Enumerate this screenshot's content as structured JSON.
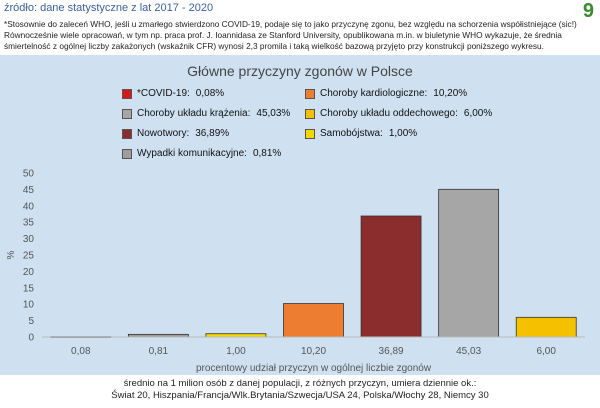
{
  "header": {
    "source": "źródło: dane statystyczne z lat 2017 - 2020",
    "page_number": "9",
    "note_line1": "*Stosownie do zaleceń WHO, jeśli u zmarłego stwierdzono COVID-19, podaje się to jako przyczynę zgonu, bez względu na schorzenia współistniejące (sic!)",
    "note_line2": "Równocześnie wiele opracowań, w tym np. praca prof. J. Ioannidasa ze Stanford University, opublikowana m.in. w biuletynie WHO wykazuje, że średnia",
    "note_line3": "śmiertelność z ogólnej liczby zakażonych (wskaźnik CFR) wynosi 2,3 promila i taką wielkość bazową przyjęto przy konstrukcji poniższego wykresu."
  },
  "chart_data": {
    "type": "bar",
    "title": "Główne przyczyny zgonów w Polsce",
    "ylabel": "%",
    "xlabel": "procentowy udział przyczyn w ogólnej liczbie zgonów",
    "ylim": [
      0,
      50
    ],
    "yticks": [
      "0",
      "5",
      "10",
      "15",
      "20",
      "25",
      "30",
      "35",
      "40",
      "45",
      "50"
    ],
    "grid": false,
    "categories": [
      "0,08",
      "0,81",
      "1,00",
      "10,20",
      "36,89",
      "45,03",
      "6,00"
    ],
    "values": [
      0.08,
      0.81,
      1.0,
      10.2,
      36.89,
      45.03,
      6.0
    ],
    "colors": [
      "#d7191c",
      "#9e9e9e",
      "#f5d800",
      "#ed7d31",
      "#8b2d2d",
      "#a6a6a6",
      "#f5c000"
    ],
    "legend": [
      {
        "name": "*COVID-19:",
        "value": "0,08%",
        "color": "#d7191c"
      },
      {
        "name": "Choroby kardiologiczne:",
        "value": "10,20%",
        "color": "#ed7d31"
      },
      {
        "name": "Choroby układu krążenia:",
        "value": "45,03%",
        "color": "#a6a6a6"
      },
      {
        "name": "Choroby układu oddechowego:",
        "value": "6,00%",
        "color": "#f5c000"
      },
      {
        "name": "Nowotwory:",
        "value": "36,89%",
        "color": "#8b2d2d"
      },
      {
        "name": "Samobójstwa:",
        "value": "1,00%",
        "color": "#f5d800"
      },
      {
        "name": "Wypadki komunikacyjne:",
        "value": "0,81%",
        "color": "#9e9e9e"
      }
    ]
  },
  "footer": {
    "line1": "średnio na 1 milion osób z danej populacji, z różnych przyczyn, umiera dziennie ok.:",
    "line2": "Świat 20, Hiszpania/Francja/Wlk.Brytania/Szwecja/USA 24, Polska/Włochy 28, Niemcy 30"
  }
}
